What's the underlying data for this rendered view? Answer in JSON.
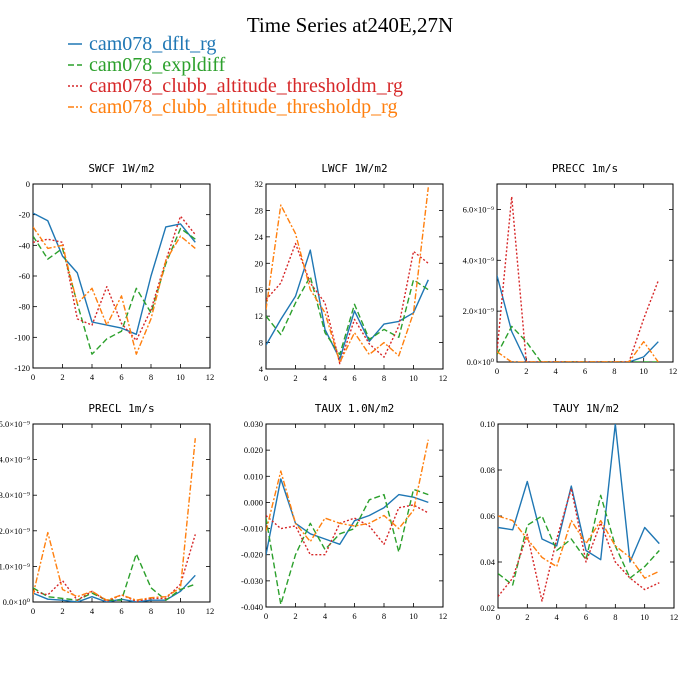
{
  "figure": {
    "title": "Time Series at240E,27N"
  },
  "legend": [
    {
      "label": "cam078_dflt_rg",
      "color": "#1f77b4",
      "dash": ""
    },
    {
      "label": "cam078_expldiff",
      "color": "#2ca02c",
      "dash": "6,3"
    },
    {
      "label": "cam078_clubb_altitude_thresholdm_rg",
      "color": "#d62728",
      "dash": "2,2"
    },
    {
      "label": "cam078_clubb_altitude_thresholdp_rg",
      "color": "#ff7f0e",
      "dash": "6,2,2,2"
    }
  ],
  "chart_data": [
    {
      "type": "line",
      "title": "SWCF   1W/m2",
      "xlim": [
        0,
        12
      ],
      "ylim": [
        -120,
        0
      ],
      "xticks": [
        0,
        2,
        4,
        6,
        8,
        10,
        12
      ],
      "yticks": [
        {
          "v": -120,
          "label": "-120"
        },
        {
          "v": -100,
          "label": "-100"
        },
        {
          "v": -80,
          "label": "-80"
        },
        {
          "v": -60,
          "label": "-60"
        },
        {
          "v": -40,
          "label": "-40"
        },
        {
          "v": -20,
          "label": "-20"
        },
        {
          "v": 0,
          "label": "0"
        }
      ],
      "x": [
        0,
        1,
        2,
        3,
        4,
        5,
        6,
        7,
        8,
        9,
        10,
        11
      ],
      "series": [
        {
          "name": "cam078_dflt_rg",
          "values": [
            -19,
            -24,
            -47,
            -58,
            -90,
            -92,
            -94,
            -98,
            -60,
            -28,
            -26,
            -38
          ]
        },
        {
          "name": "cam078_expldiff",
          "values": [
            -34,
            -49,
            -42,
            -78,
            -111,
            -101,
            -96,
            -68,
            -84,
            -52,
            -29,
            -36
          ]
        },
        {
          "name": "cam078_clubb_altitude_thresholdm_rg",
          "values": [
            -38,
            -36,
            -38,
            -88,
            -92,
            -67,
            -91,
            -102,
            -82,
            -50,
            -21,
            -33
          ]
        },
        {
          "name": "cam078_clubb_altitude_thresholdp_rg",
          "values": [
            -28,
            -42,
            -40,
            -78,
            -68,
            -92,
            -73,
            -111,
            -88,
            -50,
            -34,
            -42
          ]
        }
      ]
    },
    {
      "type": "line",
      "title": "LWCF   1W/m2",
      "xlim": [
        0,
        12
      ],
      "ylim": [
        4,
        32
      ],
      "xticks": [
        0,
        2,
        4,
        6,
        8,
        10,
        12
      ],
      "yticks": [
        {
          "v": 4,
          "label": "4"
        },
        {
          "v": 8,
          "label": "8"
        },
        {
          "v": 12,
          "label": "12"
        },
        {
          "v": 16,
          "label": "16"
        },
        {
          "v": 20,
          "label": "20"
        },
        {
          "v": 24,
          "label": "24"
        },
        {
          "v": 28,
          "label": "28"
        },
        {
          "v": 32,
          "label": "32"
        }
      ],
      "x": [
        0,
        1,
        2,
        3,
        4,
        5,
        6,
        7,
        8,
        9,
        10,
        11
      ],
      "series": [
        {
          "name": "cam078_dflt_rg",
          "values": [
            7.6,
            11.5,
            15,
            22,
            10,
            5.5,
            12.8,
            8.2,
            10.8,
            11.2,
            12.5,
            17.5
          ]
        },
        {
          "name": "cam078_expldiff",
          "values": [
            12,
            9.2,
            14,
            18,
            9.5,
            6.2,
            13.8,
            8.5,
            10,
            8.8,
            17.5,
            16
          ]
        },
        {
          "name": "cam078_clubb_altitude_thresholdm_rg",
          "values": [
            14.5,
            17,
            23,
            17,
            14,
            4.8,
            11.5,
            7.8,
            5.8,
            10.5,
            21.8,
            20
          ]
        },
        {
          "name": "cam078_clubb_altitude_thresholdp_rg",
          "values": [
            13,
            28.8,
            24.5,
            16,
            12.5,
            5,
            9.5,
            6.2,
            8,
            6,
            12.5,
            31.5
          ]
        }
      ]
    },
    {
      "type": "line",
      "title": "PRECC   1m/s",
      "xlim": [
        0,
        12
      ],
      "ylim": [
        0,
        7e-09
      ],
      "xticks": [
        0,
        2,
        4,
        6,
        8,
        10,
        12
      ],
      "yticks": [
        {
          "v": 0,
          "label": "0.0×10⁰"
        },
        {
          "v": 2e-09,
          "label": "2.0×10⁻⁹"
        },
        {
          "v": 4e-09,
          "label": "4.0×10⁻⁹"
        },
        {
          "v": 6e-09,
          "label": "6.0×10⁻⁹"
        }
      ],
      "x": [
        0,
        1,
        2,
        3,
        4,
        5,
        6,
        7,
        8,
        9,
        10,
        11
      ],
      "series": [
        {
          "name": "cam078_dflt_rg",
          "values": [
            3.4e-09,
            1.2e-09,
            0,
            0,
            0,
            0,
            0,
            0,
            0,
            0,
            2e-10,
            8e-10
          ]
        },
        {
          "name": "cam078_expldiff",
          "values": [
            3e-10,
            1.4e-09,
            8e-10,
            0,
            0,
            0,
            0,
            0,
            0,
            0,
            0,
            0
          ]
        },
        {
          "name": "cam078_clubb_altitude_thresholdm_rg",
          "values": [
            4e-10,
            6.5e-09,
            0,
            0,
            0,
            0,
            0,
            0,
            0,
            0,
            1.7e-09,
            3.2e-09
          ]
        },
        {
          "name": "cam078_clubb_altitude_thresholdp_rg",
          "values": [
            4e-10,
            0,
            0,
            0,
            0,
            0,
            0,
            0,
            0,
            0,
            8e-10,
            0
          ]
        }
      ]
    },
    {
      "type": "line",
      "title": "PRECL   1m/s",
      "xlim": [
        0,
        12
      ],
      "ylim": [
        0,
        5e-09
      ],
      "xticks": [
        0,
        2,
        4,
        6,
        8,
        10,
        12
      ],
      "yticks": [
        {
          "v": 0,
          "label": "0.0×10⁰"
        },
        {
          "v": 1e-09,
          "label": "1.0×10⁻⁹"
        },
        {
          "v": 2e-09,
          "label": "2.0×10⁻⁹"
        },
        {
          "v": 3e-09,
          "label": "3.0×10⁻⁹"
        },
        {
          "v": 4e-09,
          "label": "4.0×10⁻⁹"
        },
        {
          "v": 5e-09,
          "label": "5.0×10⁻⁹"
        }
      ],
      "x": [
        0,
        1,
        2,
        3,
        4,
        5,
        6,
        7,
        8,
        9,
        10,
        11
      ],
      "series": [
        {
          "name": "cam078_dflt_rg",
          "values": [
            2.5e-10,
            8e-11,
            5e-11,
            0,
            1.5e-10,
            0,
            8e-11,
            0,
            5e-11,
            5e-11,
            3e-10,
            7.5e-10
          ]
        },
        {
          "name": "cam078_expldiff",
          "values": [
            4e-10,
            1.5e-10,
            1e-10,
            5e-11,
            2.5e-10,
            5e-11,
            5e-11,
            1.35e-09,
            4e-10,
            5e-11,
            3.5e-10,
            5e-10
          ]
        },
        {
          "name": "cam078_clubb_altitude_thresholdm_rg",
          "values": [
            3e-10,
            2e-10,
            6e-10,
            5e-11,
            3e-10,
            2e-11,
            2e-10,
            2e-11,
            1e-10,
            1e-10,
            5e-10,
            1.9e-09
          ]
        },
        {
          "name": "cam078_clubb_altitude_thresholdp_rg",
          "values": [
            2e-10,
            1.95e-09,
            3.5e-10,
            1.5e-10,
            3e-10,
            5e-11,
            2e-10,
            5e-11,
            1.2e-10,
            1.5e-10,
            4e-10,
            4.6e-09
          ]
        }
      ]
    },
    {
      "type": "line",
      "title": "TAUX   1.0N/m2",
      "xlim": [
        0,
        12
      ],
      "ylim": [
        -0.04,
        0.03
      ],
      "xticks": [
        0,
        2,
        4,
        6,
        8,
        10,
        12
      ],
      "yticks": [
        {
          "v": -0.04,
          "label": "-0.040"
        },
        {
          "v": -0.03,
          "label": "-0.030"
        },
        {
          "v": -0.02,
          "label": "-0.020"
        },
        {
          "v": -0.01,
          "label": "-0.010"
        },
        {
          "v": 0,
          "label": "0.000"
        },
        {
          "v": 0.01,
          "label": "0.010"
        },
        {
          "v": 0.02,
          "label": "0.020"
        },
        {
          "v": 0.03,
          "label": "0.030"
        }
      ],
      "x": [
        0,
        1,
        2,
        3,
        4,
        5,
        6,
        7,
        8,
        9,
        10,
        11
      ],
      "series": [
        {
          "name": "cam078_dflt_rg",
          "values": [
            -0.02,
            0.009,
            -0.008,
            -0.012,
            -0.014,
            -0.016,
            -0.007,
            -0.005,
            -0.002,
            0.003,
            0.002,
            0
          ]
        },
        {
          "name": "cam078_expldiff",
          "values": [
            -0.006,
            -0.039,
            -0.02,
            -0.008,
            -0.018,
            -0.012,
            -0.01,
            0.001,
            0.003,
            -0.019,
            0.005,
            0.003
          ]
        },
        {
          "name": "cam078_clubb_altitude_thresholdm_rg",
          "values": [
            -0.005,
            -0.01,
            -0.009,
            -0.02,
            -0.02,
            -0.008,
            -0.006,
            -0.009,
            -0.016,
            -0.002,
            -0.001,
            -0.004
          ]
        },
        {
          "name": "cam078_clubb_altitude_thresholdp_rg",
          "values": [
            -0.011,
            0.012,
            -0.008,
            -0.015,
            -0.006,
            -0.008,
            -0.009,
            -0.008,
            -0.005,
            -0.01,
            -0.003,
            0.024
          ]
        }
      ]
    },
    {
      "type": "line",
      "title": "TAUY   1N/m2",
      "xlim": [
        0,
        12
      ],
      "ylim": [
        0.02,
        0.1
      ],
      "xticks": [
        0,
        2,
        4,
        6,
        8,
        10,
        12
      ],
      "yticks": [
        {
          "v": 0.02,
          "label": "0.02"
        },
        {
          "v": 0.04,
          "label": "0.04"
        },
        {
          "v": 0.06,
          "label": "0.06"
        },
        {
          "v": 0.08,
          "label": "0.08"
        },
        {
          "v": 0.1,
          "label": "0.10"
        }
      ],
      "x": [
        0,
        1,
        2,
        3,
        4,
        5,
        6,
        7,
        8,
        9,
        10,
        11
      ],
      "series": [
        {
          "name": "cam078_dflt_rg",
          "values": [
            0.055,
            0.054,
            0.075,
            0.05,
            0.047,
            0.073,
            0.045,
            0.041,
            0.1,
            0.04,
            0.055,
            0.048
          ]
        },
        {
          "name": "cam078_expldiff",
          "values": [
            0.035,
            0.03,
            0.056,
            0.06,
            0.045,
            0.05,
            0.041,
            0.069,
            0.047,
            0.033,
            0.038,
            0.045
          ]
        },
        {
          "name": "cam078_clubb_altitude_thresholdm_rg",
          "values": [
            0.025,
            0.033,
            0.052,
            0.023,
            0.05,
            0.072,
            0.04,
            0.057,
            0.04,
            0.033,
            0.028,
            0.031
          ]
        },
        {
          "name": "cam078_clubb_altitude_thresholdp_rg",
          "values": [
            0.06,
            0.058,
            0.05,
            0.042,
            0.038,
            0.058,
            0.048,
            0.058,
            0.047,
            0.042,
            0.033,
            0.036
          ]
        }
      ]
    }
  ]
}
